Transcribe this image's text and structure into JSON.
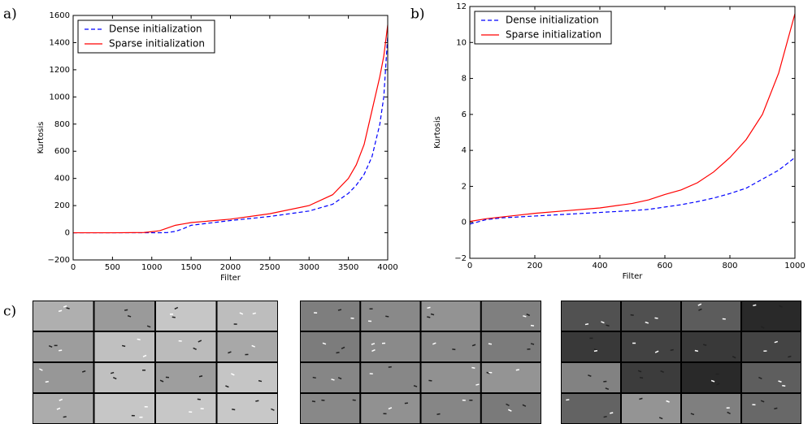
{
  "panel_labels": [
    "a)",
    "b)",
    "c)"
  ],
  "chart_data": [
    {
      "type": "line",
      "xlabel": "Filter",
      "ylabel": "Kurtosis",
      "legend": "upper left",
      "x": [
        0,
        500,
        900,
        1000,
        1100,
        1200,
        1300,
        1400,
        1500,
        2000,
        2500,
        3000,
        3300,
        3500,
        3600,
        3700,
        3800,
        3900,
        3950,
        4000
      ],
      "series": [
        {
          "name": "Dense initialization",
          "color": "#0000ff",
          "dash": true,
          "values": [
            0,
            0,
            0,
            0,
            0,
            2,
            10,
            30,
            55,
            90,
            120,
            160,
            210,
            290,
            350,
            430,
            560,
            800,
            1000,
            1450
          ]
        },
        {
          "name": "Sparse initialization",
          "color": "#ff0000",
          "dash": false,
          "values": [
            0,
            0,
            2,
            8,
            15,
            35,
            55,
            65,
            75,
            100,
            140,
            200,
            280,
            400,
            500,
            650,
            900,
            1150,
            1300,
            1530
          ]
        }
      ],
      "xlim": [
        0,
        4000
      ],
      "xticks": [
        0,
        500,
        1000,
        1500,
        2000,
        2500,
        3000,
        3500,
        4000
      ],
      "ylim": [
        -200,
        1600
      ],
      "yticks": [
        {
          "value": -200,
          "label": "−200"
        },
        0,
        200,
        400,
        600,
        800,
        1000,
        1200,
        1400,
        1600
      ]
    },
    {
      "type": "line",
      "xlabel": "Filter",
      "ylabel": "Kurtosis",
      "legend": "upper left",
      "x": [
        0,
        50,
        100,
        200,
        300,
        400,
        500,
        550,
        600,
        650,
        700,
        750,
        800,
        850,
        900,
        950,
        1000
      ],
      "series": [
        {
          "name": "Dense initialization",
          "color": "#0000ff",
          "dash": true,
          "values": [
            -0.1,
            0.15,
            0.25,
            0.35,
            0.45,
            0.55,
            0.65,
            0.72,
            0.85,
            0.98,
            1.15,
            1.35,
            1.6,
            1.9,
            2.4,
            2.9,
            3.6
          ]
        },
        {
          "name": "Sparse initialization",
          "color": "#ff0000",
          "dash": false,
          "values": [
            0.05,
            0.2,
            0.3,
            0.5,
            0.65,
            0.8,
            1.05,
            1.25,
            1.55,
            1.8,
            2.2,
            2.8,
            3.6,
            4.6,
            6.0,
            8.3,
            11.6
          ]
        }
      ],
      "xlim": [
        0,
        1000
      ],
      "xticks": [
        0,
        200,
        400,
        600,
        800,
        1000
      ],
      "ylim": [
        -2,
        12
      ],
      "yticks": [
        {
          "value": -2,
          "label": "−2"
        },
        0,
        2,
        4,
        6,
        8,
        10,
        12
      ]
    }
  ]
}
